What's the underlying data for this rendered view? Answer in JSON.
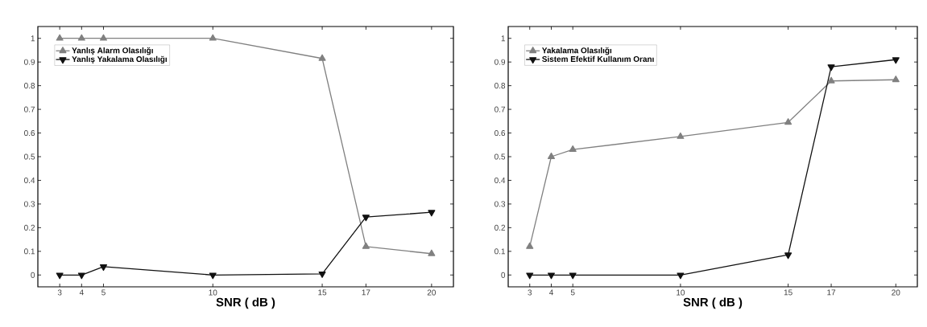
{
  "chart_data": [
    {
      "type": "line",
      "xlabel": "SNR ( dB )",
      "x": [
        3,
        4,
        5,
        10,
        15,
        17,
        20
      ],
      "xlim": [
        2,
        21
      ],
      "xticks": [
        3,
        4,
        5,
        10,
        15,
        17,
        20
      ],
      "ylim": [
        -0.05,
        1.05
      ],
      "yticks": [
        0,
        0.1,
        0.2,
        0.3,
        0.4,
        0.5,
        0.6,
        0.7,
        0.8,
        0.9,
        1
      ],
      "legend": "top left",
      "grid": false,
      "series": [
        {
          "name": "Yanlış Alarm Olasılığı",
          "color": "#808080",
          "marker": "triangle",
          "values": [
            1,
            1,
            1,
            1,
            0.915,
            0.12,
            0.09
          ]
        },
        {
          "name": "Yanlış Yakalama Olasılığı",
          "color": "#111111",
          "marker": "triangle-down",
          "values": [
            0,
            0,
            0.035,
            0,
            0.005,
            0.245,
            0.265
          ]
        }
      ]
    },
    {
      "type": "line",
      "xlabel": "SNR ( dB )",
      "x": [
        3,
        4,
        5,
        10,
        15,
        17,
        20
      ],
      "xlim": [
        2,
        21
      ],
      "xticks": [
        3,
        4,
        5,
        10,
        15,
        17,
        20
      ],
      "ylim": [
        -0.05,
        1.05
      ],
      "yticks": [
        0,
        0.1,
        0.2,
        0.3,
        0.4,
        0.5,
        0.6,
        0.7,
        0.8,
        0.9,
        1
      ],
      "legend": "top left",
      "grid": false,
      "series": [
        {
          "name": "Yakalama Olasılığı",
          "color": "#808080",
          "marker": "triangle",
          "values": [
            0.12,
            0.5,
            0.53,
            0.585,
            0.645,
            0.82,
            0.825
          ]
        },
        {
          "name": "Sistem Efektif Kullanım Oranı",
          "color": "#111111",
          "marker": "triangle-down",
          "values": [
            0,
            0,
            0,
            0,
            0.085,
            0.88,
            0.91
          ]
        }
      ]
    }
  ]
}
